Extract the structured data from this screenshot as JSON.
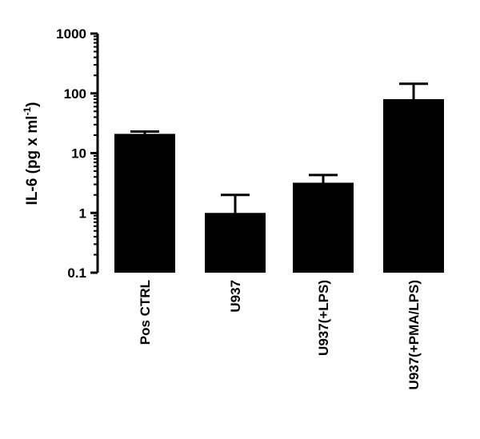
{
  "chart_data": {
    "type": "bar",
    "yscale": "log",
    "ylim": [
      0.1,
      1000
    ],
    "yticks": [
      {
        "value": 0.1,
        "label": "0.1"
      },
      {
        "value": 1,
        "label": "1"
      },
      {
        "value": 10,
        "label": "10"
      },
      {
        "value": 100,
        "label": "100"
      },
      {
        "value": 1000,
        "label": "1000"
      }
    ],
    "ylabel": {
      "main": "IL-6 (pg x ml",
      "sup": "-1",
      "close": ")"
    },
    "xlabel": "",
    "categories": [
      "Pos CTRL",
      "U937",
      "U937(+LPS)",
      "U937(+PMA/LPS)"
    ],
    "values": [
      21,
      1.0,
      3.2,
      80
    ],
    "error_upper": [
      23,
      2.0,
      4.3,
      145
    ],
    "bar_color": "#000000",
    "grid": false,
    "legend": "none"
  }
}
